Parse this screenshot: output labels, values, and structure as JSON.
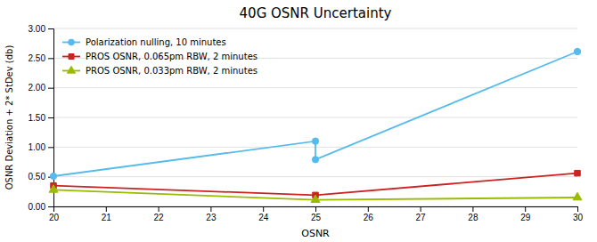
{
  "chart_data": {
    "type": "line",
    "title": "40G OSNR Uncertainty",
    "xlabel": "OSNR",
    "ylabel": "OSNR Deviation + 2* StDev (db)",
    "xlim": [
      20,
      30
    ],
    "ylim": [
      0.0,
      3.0
    ],
    "xticks": [
      20,
      21,
      22,
      23,
      24,
      25,
      26,
      27,
      28,
      29,
      30
    ],
    "yticks": [
      {
        "value": 0.0,
        "label": "0.00"
      },
      {
        "value": 0.5,
        "label": "0.50"
      },
      {
        "value": 1.0,
        "label": "1.00"
      },
      {
        "value": 1.5,
        "label": "1.50"
      },
      {
        "value": 2.0,
        "label": "2.00"
      },
      {
        "value": 2.5,
        "label": "2.50"
      },
      {
        "value": 3.0,
        "label": "3.00"
      }
    ],
    "grid": true,
    "legend": "upper left",
    "series": [
      {
        "name": "Polarization nulling, 10 minutes",
        "color": "#55bbee",
        "marker": "circle",
        "x": [
          20,
          25,
          25,
          30
        ],
        "values": [
          0.51,
          1.1,
          0.79,
          2.61
        ]
      },
      {
        "name": "PROS OSNR, 0.065pm RBW, 2 minutes",
        "color": "#cc2222",
        "marker": "square",
        "x": [
          20,
          25,
          30
        ],
        "values": [
          0.35,
          0.19,
          0.56
        ]
      },
      {
        "name": "PROS OSNR, 0.033pm RBW, 2 minutes",
        "color": "#99bb00",
        "marker": "triangle-up",
        "x": [
          20,
          25,
          30
        ],
        "values": [
          0.28,
          0.11,
          0.15
        ]
      }
    ]
  }
}
